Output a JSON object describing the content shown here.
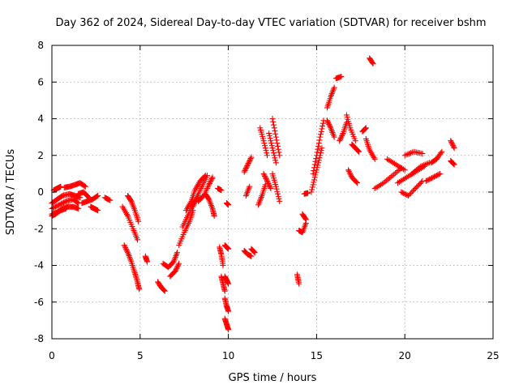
{
  "chart_data": {
    "type": "scatter",
    "title": "Day 362 of 2024, Sidereal Day-to-day VTEC variation (SDTVAR) for receiver bshm",
    "xlabel": "GPS time / hours",
    "ylabel": "SDTVAR / TECUs",
    "xlim": [
      0,
      25
    ],
    "ylim": [
      -8,
      8
    ],
    "xticks": [
      "0",
      "5",
      "10",
      "15",
      "20",
      "25"
    ],
    "yticks": [
      "-8",
      "-6",
      "-4",
      "-2",
      "0",
      "2",
      "4",
      "6",
      "8"
    ],
    "grid": true,
    "marker": "+",
    "color": "#ff0000",
    "tracks": [
      {
        "x": [
          0.0,
          0.3,
          0.6,
          0.9,
          1.2,
          1.5
        ],
        "y": [
          -1.2,
          -1.1,
          -0.9,
          -0.8,
          -0.8,
          -0.9
        ]
      },
      {
        "x": [
          0.0,
          0.4,
          0.8,
          1.2,
          1.5
        ],
        "y": [
          -0.9,
          -0.7,
          -0.5,
          -0.4,
          -0.6
        ]
      },
      {
        "x": [
          0.0,
          0.3,
          0.6,
          1.0,
          1.3,
          1.6
        ],
        "y": [
          -0.6,
          -0.4,
          -0.2,
          -0.1,
          -0.2,
          -0.3
        ]
      },
      {
        "x": [
          0.0,
          0.2,
          0.5,
          0.8
        ],
        "y": [
          -1.3,
          -1.2,
          -1.0,
          -0.9
        ]
      },
      {
        "x": [
          0.1,
          0.3,
          0.5
        ],
        "y": [
          0.1,
          0.2,
          0.3
        ]
      },
      {
        "x": [
          0.7,
          1.0,
          1.3,
          1.6,
          1.9
        ],
        "y": [
          0.25,
          0.3,
          0.4,
          0.5,
          0.3
        ]
      },
      {
        "x": [
          1.5,
          1.8,
          2.1
        ],
        "y": [
          -0.1,
          0.0,
          -0.3
        ]
      },
      {
        "x": [
          1.7,
          2.0,
          2.3,
          2.6
        ],
        "y": [
          -0.6,
          -0.5,
          -0.4,
          -0.2
        ]
      },
      {
        "x": [
          2.2,
          2.4,
          2.6
        ],
        "y": [
          -0.8,
          -0.9,
          -1.0
        ]
      },
      {
        "x": [
          3.0,
          3.3
        ],
        "y": [
          -0.3,
          -0.45
        ]
      },
      {
        "x": [
          4.3,
          4.5,
          4.7,
          4.9
        ],
        "y": [
          -0.2,
          -0.5,
          -1.0,
          -1.6
        ]
      },
      {
        "x": [
          4.0,
          4.3,
          4.6,
          4.85
        ],
        "y": [
          -0.8,
          -1.3,
          -2.0,
          -2.6
        ]
      },
      {
        "x": [
          4.1,
          4.3,
          4.5,
          4.7,
          4.85,
          4.95
        ],
        "y": [
          -2.9,
          -3.3,
          -3.8,
          -4.4,
          -4.9,
          -5.3
        ]
      },
      {
        "x": [
          5.3,
          5.4
        ],
        "y": [
          -3.5,
          -3.8
        ]
      },
      {
        "x": [
          6.0,
          6.2,
          6.4
        ],
        "y": [
          -4.9,
          -5.2,
          -5.4
        ]
      },
      {
        "x": [
          6.3,
          6.6,
          6.9,
          7.1
        ],
        "y": [
          -3.9,
          -4.1,
          -3.8,
          -3.3
        ]
      },
      {
        "x": [
          6.7,
          7.0,
          7.2
        ],
        "y": [
          -4.6,
          -4.3,
          -3.9
        ]
      },
      {
        "x": [
          7.2,
          7.5,
          7.8,
          8.0
        ],
        "y": [
          -2.9,
          -2.2,
          -1.6,
          -1.0
        ]
      },
      {
        "x": [
          7.4,
          7.7,
          8.0,
          8.3
        ],
        "y": [
          -1.9,
          -1.3,
          -0.7,
          -0.2
        ]
      },
      {
        "x": [
          7.6,
          7.9,
          8.1,
          8.4,
          8.7
        ],
        "y": [
          -1.0,
          -0.5,
          0.1,
          0.6,
          0.9
        ]
      },
      {
        "x": [
          8.0,
          8.2,
          8.5,
          8.8
        ],
        "y": [
          -0.8,
          -0.3,
          0.3,
          0.9
        ]
      },
      {
        "x": [
          8.3,
          8.6,
          8.9,
          9.1
        ],
        "y": [
          -0.5,
          -0.2,
          0.4,
          0.8
        ]
      },
      {
        "x": [
          8.7,
          8.9,
          9.1,
          9.2
        ],
        "y": [
          -0.1,
          -0.4,
          -0.9,
          -1.3
        ]
      },
      {
        "x": [
          9.4,
          9.6
        ],
        "y": [
          0.2,
          0.1
        ]
      },
      {
        "x": [
          9.5,
          9.6,
          9.7
        ],
        "y": [
          -3.0,
          -3.4,
          -4.0
        ]
      },
      {
        "x": [
          9.6,
          9.7,
          9.8
        ],
        "y": [
          -4.6,
          -5.0,
          -5.4
        ]
      },
      {
        "x": [
          9.8,
          9.9,
          10.0
        ],
        "y": [
          -2.9,
          -3.0,
          -3.1
        ]
      },
      {
        "x": [
          9.8,
          9.9,
          10.0
        ],
        "y": [
          -4.6,
          -4.8,
          -5.0
        ]
      },
      {
        "x": [
          9.8,
          9.9,
          10.0
        ],
        "y": [
          -5.8,
          -6.2,
          -6.5
        ]
      },
      {
        "x": [
          9.8,
          9.9,
          10.0
        ],
        "y": [
          -6.9,
          -7.2,
          -7.5
        ]
      },
      {
        "x": [
          9.9,
          10.0
        ],
        "y": [
          -0.6,
          -0.7
        ]
      },
      {
        "x": [
          10.9,
          11.1,
          11.3
        ],
        "y": [
          1.1,
          1.5,
          1.9
        ]
      },
      {
        "x": [
          10.9,
          11.1,
          11.3
        ],
        "y": [
          -3.2,
          -3.4,
          -3.5
        ]
      },
      {
        "x": [
          11.0,
          11.2
        ],
        "y": [
          -0.2,
          0.3
        ]
      },
      {
        "x": [
          11.3,
          11.5
        ],
        "y": [
          -3.1,
          -3.3
        ]
      },
      {
        "x": [
          11.7,
          11.9,
          12.1
        ],
        "y": [
          -0.7,
          -0.2,
          0.4
        ]
      },
      {
        "x": [
          11.8,
          12.0,
          12.2
        ],
        "y": [
          3.5,
          2.8,
          2.0
        ]
      },
      {
        "x": [
          12.0,
          12.2,
          12.4
        ],
        "y": [
          1.0,
          0.6,
          0.2
        ]
      },
      {
        "x": [
          12.3,
          12.5,
          12.7
        ],
        "y": [
          3.2,
          2.4,
          1.6
        ]
      },
      {
        "x": [
          12.5,
          12.7,
          12.9
        ],
        "y": [
          4.0,
          3.0,
          2.0
        ]
      },
      {
        "x": [
          12.5,
          12.7,
          12.9
        ],
        "y": [
          1.0,
          0.3,
          -0.5
        ]
      },
      {
        "x": [
          13.9,
          14.0
        ],
        "y": [
          -4.5,
          -5.0
        ]
      },
      {
        "x": [
          14.0,
          14.2,
          14.4
        ],
        "y": [
          -2.1,
          -2.2,
          -1.7
        ]
      },
      {
        "x": [
          14.2,
          14.4
        ],
        "y": [
          -1.2,
          -1.5
        ]
      },
      {
        "x": [
          14.3,
          14.5
        ],
        "y": [
          -0.1,
          -0.05
        ]
      },
      {
        "x": [
          14.8,
          15.0,
          15.2,
          15.4
        ],
        "y": [
          1.0,
          2.0,
          3.0,
          3.9
        ]
      },
      {
        "x": [
          14.7,
          14.9,
          15.1,
          15.3
        ],
        "y": [
          0.0,
          0.8,
          1.6,
          2.4
        ]
      },
      {
        "x": [
          15.6,
          15.8,
          16.0
        ],
        "y": [
          4.6,
          5.2,
          5.7
        ]
      },
      {
        "x": [
          15.6,
          15.8,
          16.0
        ],
        "y": [
          3.9,
          3.5,
          3.0
        ]
      },
      {
        "x": [
          16.1,
          16.4
        ],
        "y": [
          6.2,
          6.3
        ]
      },
      {
        "x": [
          16.3,
          16.5,
          16.7
        ],
        "y": [
          2.8,
          3.2,
          3.8
        ]
      },
      {
        "x": [
          16.7,
          16.9,
          17.2
        ],
        "y": [
          4.2,
          3.5,
          2.8
        ]
      },
      {
        "x": [
          16.8,
          17.0,
          17.3
        ],
        "y": [
          1.2,
          0.8,
          0.5
        ]
      },
      {
        "x": [
          17.0,
          17.2,
          17.4
        ],
        "y": [
          2.6,
          2.4,
          2.2
        ]
      },
      {
        "x": [
          17.6,
          17.8
        ],
        "y": [
          3.3,
          3.5
        ]
      },
      {
        "x": [
          17.8,
          18.0,
          18.3
        ],
        "y": [
          2.9,
          2.3,
          1.8
        ]
      },
      {
        "x": [
          18.0,
          18.2
        ],
        "y": [
          7.3,
          7.0
        ]
      },
      {
        "x": [
          18.3,
          18.8,
          19.3,
          19.8
        ],
        "y": [
          0.2,
          0.5,
          0.9,
          1.3
        ]
      },
      {
        "x": [
          19.0,
          19.5,
          20.0
        ],
        "y": [
          1.8,
          1.5,
          1.2
        ]
      },
      {
        "x": [
          19.6,
          20.1,
          20.6,
          21.1
        ],
        "y": [
          0.5,
          0.8,
          1.1,
          1.4
        ]
      },
      {
        "x": [
          19.8,
          20.2,
          20.6,
          21.0
        ],
        "y": [
          0.0,
          -0.2,
          0.2,
          0.6
        ]
      },
      {
        "x": [
          20.0,
          20.5,
          21.0
        ],
        "y": [
          2.0,
          2.2,
          2.1
        ]
      },
      {
        "x": [
          20.4,
          20.9,
          21.4
        ],
        "y": [
          1.0,
          1.4,
          1.6
        ]
      },
      {
        "x": [
          21.2,
          21.6,
          22.0
        ],
        "y": [
          0.6,
          0.8,
          1.0
        ]
      },
      {
        "x": [
          21.5,
          21.8,
          22.1
        ],
        "y": [
          1.6,
          1.8,
          2.2
        ]
      },
      {
        "x": [
          22.6,
          22.8
        ],
        "y": [
          2.8,
          2.4
        ]
      },
      {
        "x": [
          22.6,
          22.8
        ],
        "y": [
          1.7,
          1.5
        ]
      }
    ]
  }
}
